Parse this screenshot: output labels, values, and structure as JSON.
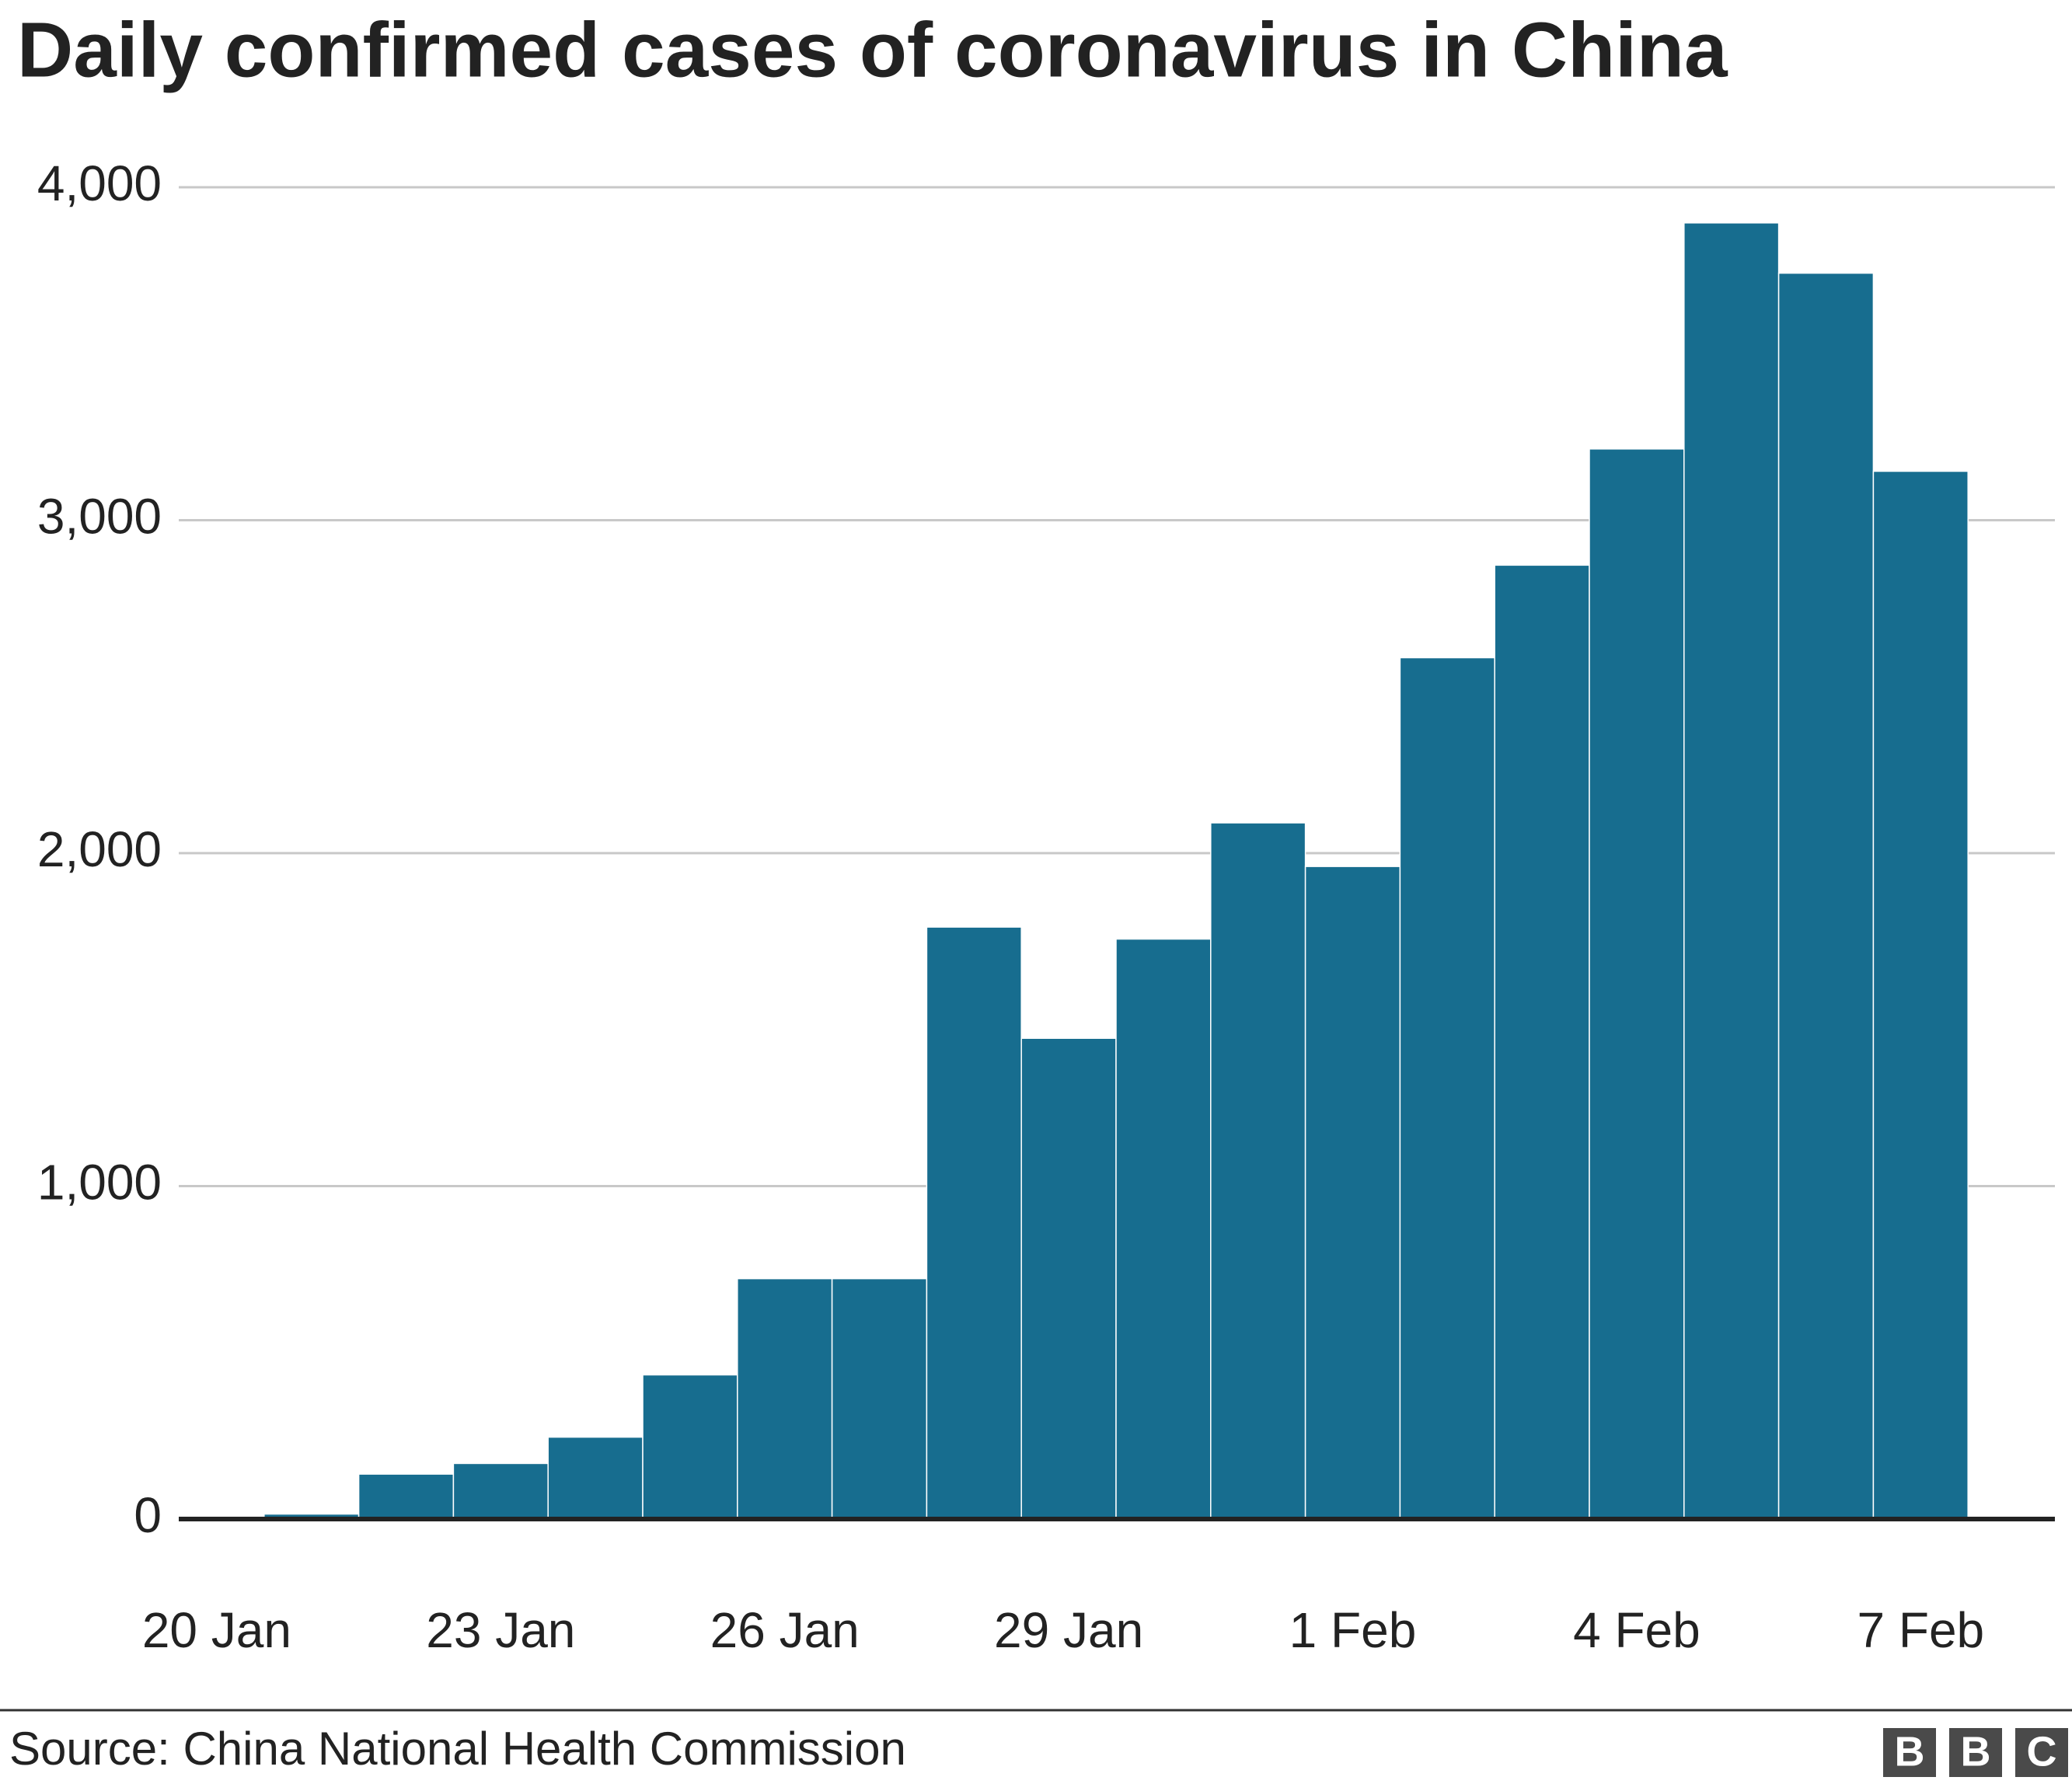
{
  "chart_data": {
    "type": "bar",
    "title": "Daily confirmed cases of coronavirus in China",
    "categories": [
      "20 Jan",
      null,
      null,
      "23 Jan",
      null,
      null,
      "26 Jan",
      null,
      null,
      "29 Jan",
      null,
      null,
      "1 Feb",
      null,
      null,
      "4 Feb",
      null,
      null,
      "7 Feb"
    ],
    "values": [
      0,
      15,
      135,
      167,
      246,
      433,
      722,
      722,
      1778,
      1444,
      1742,
      2091,
      1960,
      2587,
      2865,
      3214,
      3893,
      3742,
      3147
    ],
    "color": "#176d8f",
    "ylim": [
      0,
      4000
    ],
    "yticks": [
      0,
      {
        "value": 1000,
        "label": "1,000"
      },
      {
        "value": 2000,
        "label": "2,000"
      },
      {
        "value": 3000,
        "label": "3,000"
      },
      {
        "value": 4000,
        "label": "4,000"
      }
    ],
    "grid": true,
    "source": "Source: China National Health Commission",
    "logo": [
      "B",
      "B",
      "C"
    ]
  }
}
